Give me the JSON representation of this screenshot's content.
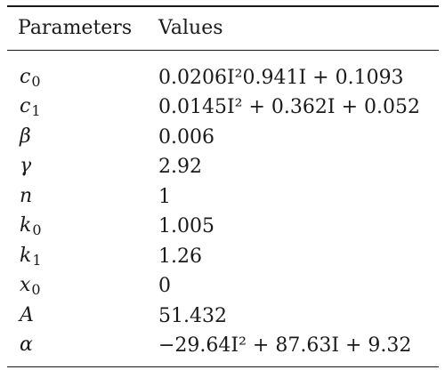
{
  "table": {
    "headers": {
      "parameters": "Parameters",
      "values": "Values"
    },
    "rows": [
      {
        "param": "c",
        "sub": "0",
        "value": "0.0206I²0.941I + 0.1093"
      },
      {
        "param": "c",
        "sub": "1",
        "value": "0.0145I² + 0.362I + 0.052"
      },
      {
        "param": "β",
        "sub": "",
        "value": "0.006"
      },
      {
        "param": "γ",
        "sub": "",
        "value": "2.92"
      },
      {
        "param": "n",
        "sub": "",
        "value": "1"
      },
      {
        "param": "k",
        "sub": "0",
        "value": "1.005"
      },
      {
        "param": "k",
        "sub": "1",
        "value": "1.26"
      },
      {
        "param": "x",
        "sub": "0",
        "value": "0"
      },
      {
        "param": "A",
        "sub": "",
        "value": "51.432"
      },
      {
        "param": "α",
        "sub": "",
        "value": "−29.64I² + 87.63I + 9.32"
      }
    ]
  }
}
